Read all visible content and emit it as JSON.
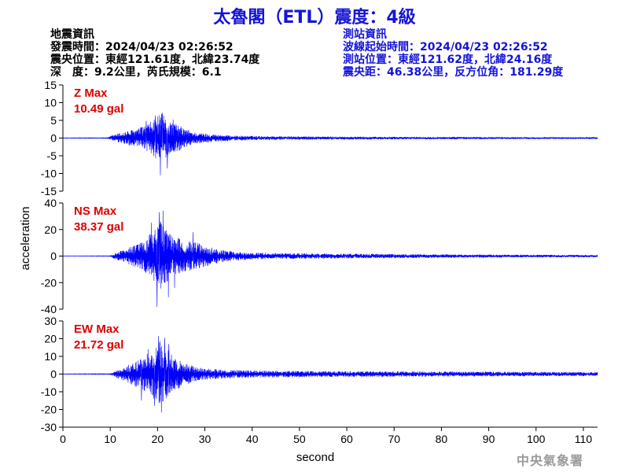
{
  "title": "太魯閣（ETL）震度：4級",
  "event_info": {
    "heading": "地震資訊",
    "origin_time": "發震時間：2024/04/23 02:26:52",
    "epicenter": "震央位置：東經121.61度，北緯23.74度",
    "depth_magnitude": "深　度：9.2公里，芮氏規模：6.1"
  },
  "station_info": {
    "heading": "測站資訊",
    "start_time": "波線起始時間：2024/04/23 02:26:52",
    "location": "測站位置：東經121.62度，北緯24.16度",
    "distance": "震央距：46.38公里，反方位角：181.29度"
  },
  "watermark": "中央氣象署",
  "colors": {
    "title": "#1515d6",
    "trace": "#0000ff",
    "max_label": "#dd0000",
    "station_info": "#1414d8"
  },
  "chart_data": {
    "type": "line",
    "xlabel": "second",
    "ylabel": "acceleration",
    "xlim": [
      0,
      113
    ],
    "x_ticks": [
      0,
      10,
      20,
      30,
      40,
      50,
      60,
      70,
      80,
      90,
      100,
      110
    ],
    "panels": [
      {
        "name": "Z",
        "max_label": "Z Max",
        "max_value": "10.49 gal",
        "ylim": [
          -15,
          15
        ],
        "y_ticks": [
          15,
          10,
          5,
          0,
          -5,
          -10,
          -15
        ],
        "envelope": [
          [
            0,
            0.05
          ],
          [
            9.5,
            0.1
          ],
          [
            10.5,
            0.9
          ],
          [
            13,
            1.8
          ],
          [
            16,
            2.8
          ],
          [
            18,
            4
          ],
          [
            20,
            6.2
          ],
          [
            21,
            6.9
          ],
          [
            22,
            5.2
          ],
          [
            24,
            4
          ],
          [
            26,
            2.6
          ],
          [
            28,
            1.6
          ],
          [
            32,
            1.1
          ],
          [
            36,
            0.7
          ],
          [
            42,
            0.6
          ],
          [
            48,
            0.5
          ],
          [
            56,
            0.45
          ],
          [
            64,
            0.4
          ],
          [
            72,
            0.35
          ],
          [
            80,
            0.35
          ],
          [
            90,
            0.3
          ],
          [
            100,
            0.25
          ],
          [
            113,
            0.2
          ]
        ],
        "extremes": [
          [
            20.6,
            -10.49
          ],
          [
            21.0,
            7.1
          ],
          [
            19.5,
            6.3
          ],
          [
            22.1,
            -8.6
          ],
          [
            17.6,
            4.9
          ],
          [
            23.3,
            5.2
          ]
        ]
      },
      {
        "name": "NS",
        "max_label": "NS Max",
        "max_value": "38.37 gal",
        "ylim": [
          -40,
          40
        ],
        "y_ticks": [
          40,
          20,
          0,
          -20,
          -40
        ],
        "envelope": [
          [
            0,
            0.1
          ],
          [
            10,
            0.2
          ],
          [
            11,
            2.5
          ],
          [
            13,
            5
          ],
          [
            15,
            8
          ],
          [
            17,
            11
          ],
          [
            19,
            19
          ],
          [
            20.5,
            27
          ],
          [
            21.5,
            23
          ],
          [
            23,
            16
          ],
          [
            25,
            13
          ],
          [
            27,
            11
          ],
          [
            28,
            10.5
          ],
          [
            30,
            8
          ],
          [
            33,
            5
          ],
          [
            36,
            3.5
          ],
          [
            40,
            2.6
          ],
          [
            46,
            2.2
          ],
          [
            52,
            2
          ],
          [
            60,
            1.8
          ],
          [
            70,
            1.6
          ],
          [
            80,
            1.4
          ],
          [
            90,
            1.2
          ],
          [
            100,
            1
          ],
          [
            113,
            0.9
          ]
        ],
        "extremes": [
          [
            19.9,
            -38.37
          ],
          [
            21.2,
            34.2
          ],
          [
            20.4,
            33
          ],
          [
            22.3,
            -31
          ],
          [
            18.7,
            25
          ],
          [
            23.6,
            -24
          ],
          [
            27.5,
            18
          ]
        ]
      },
      {
        "name": "EW",
        "max_label": "EW Max",
        "max_value": "21.72 gal",
        "ylim": [
          -30,
          30
        ],
        "y_ticks": [
          30,
          20,
          10,
          0,
          -10,
          -20,
          -30
        ],
        "envelope": [
          [
            0,
            0.1
          ],
          [
            10,
            0.2
          ],
          [
            11,
            1.8
          ],
          [
            13,
            4
          ],
          [
            15,
            7
          ],
          [
            17,
            9
          ],
          [
            19,
            15
          ],
          [
            20.5,
            19
          ],
          [
            22,
            14
          ],
          [
            24,
            9
          ],
          [
            26,
            6
          ],
          [
            28,
            4
          ],
          [
            30,
            3.2
          ],
          [
            34,
            2.5
          ],
          [
            40,
            2
          ],
          [
            48,
            1.8
          ],
          [
            56,
            1.7
          ],
          [
            66,
            1.6
          ],
          [
            76,
            1.5
          ],
          [
            86,
            1.4
          ],
          [
            96,
            1.3
          ],
          [
            106,
            1.2
          ],
          [
            113,
            1.1
          ]
        ],
        "extremes": [
          [
            20.8,
            -21.72
          ],
          [
            20.2,
            21.5
          ],
          [
            21.5,
            20.5
          ],
          [
            19.4,
            -18
          ],
          [
            22.4,
            17
          ],
          [
            16.6,
            -15
          ],
          [
            18,
            14
          ]
        ]
      }
    ]
  }
}
